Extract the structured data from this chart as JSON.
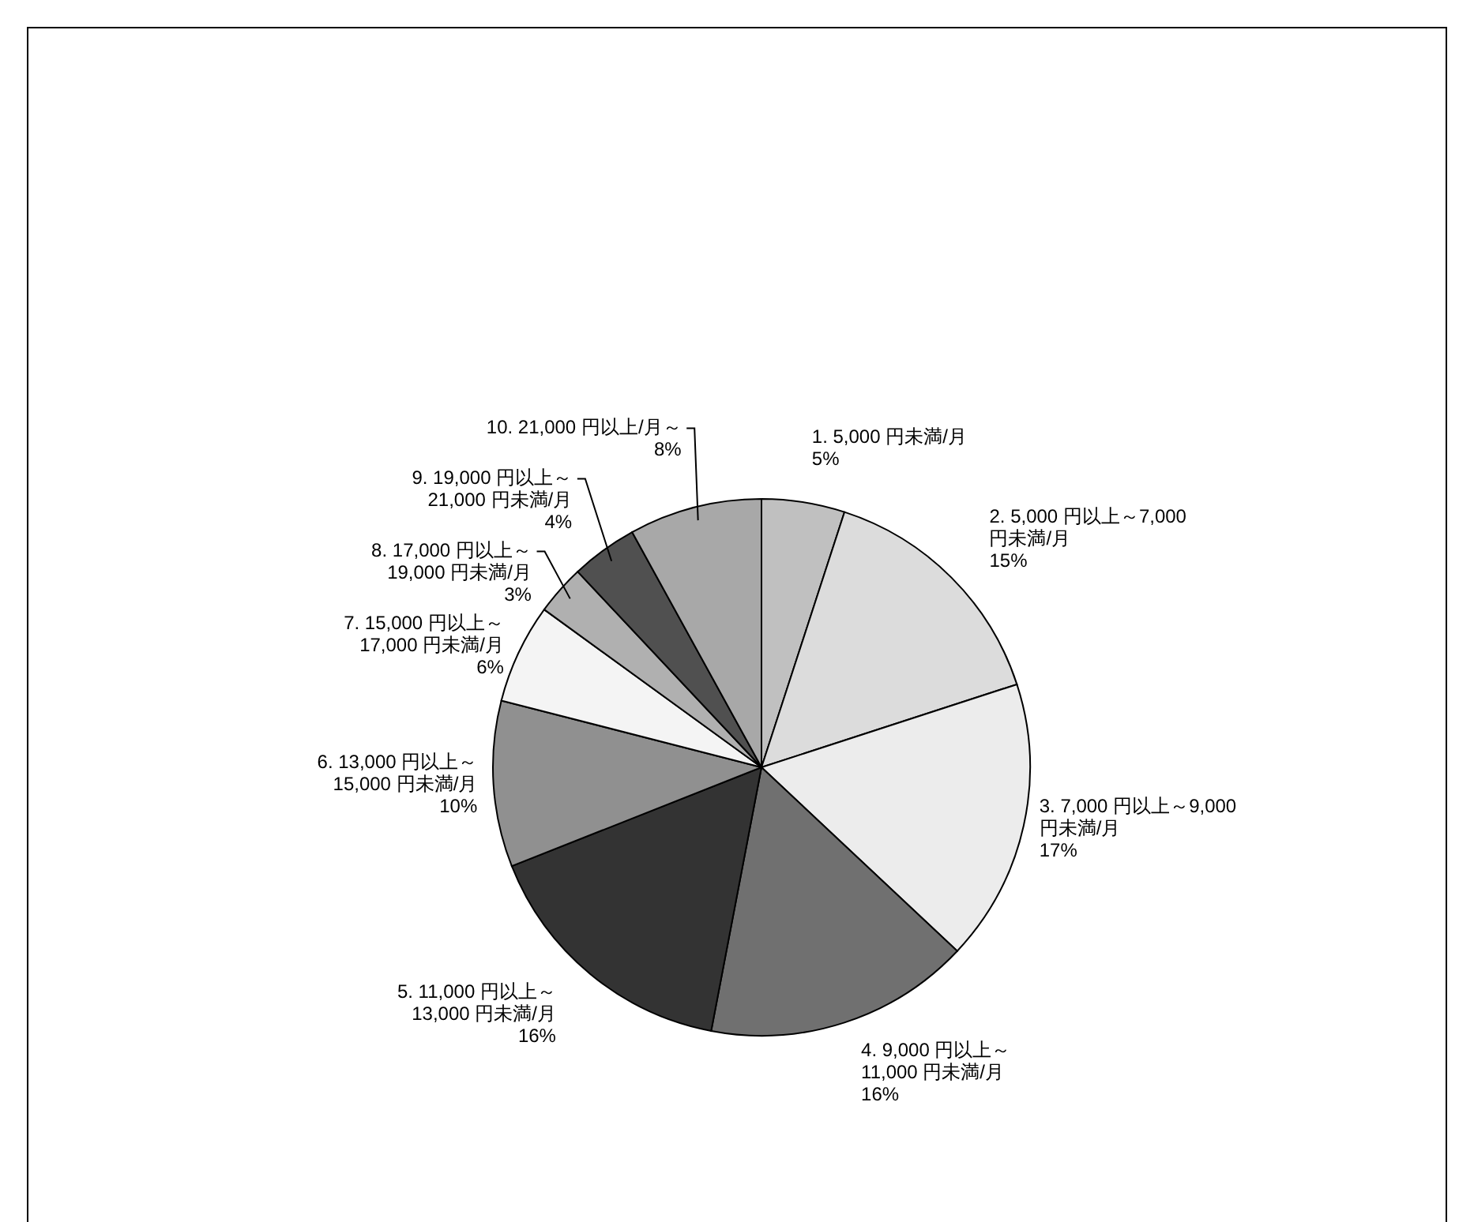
{
  "chart_data": {
    "type": "pie",
    "categories": [
      "1. 5,000 円未満/月",
      "2. 5,000 円以上～7,000 円未満/月",
      "3. 7,000 円以上～9,000 円未満/月",
      "4. 9,000 円以上～11,000 円未満/月",
      "5. 11,000 円以上～13,000 円未満/月",
      "6. 13,000 円以上～15,000 円未満/月",
      "7. 15,000 円以上～17,000 円未満/月",
      "8. 17,000 円以上～19,000 円未満/月",
      "9. 19,000 円以上～21,000 円未満/月",
      "10. 21,000 円以上/月～"
    ],
    "values": [
      5,
      15,
      17,
      16,
      16,
      10,
      6,
      3,
      4,
      8
    ],
    "value_labels": [
      "5%",
      "15%",
      "17%",
      "16%",
      "16%",
      "10%",
      "6%",
      "3%",
      "4%",
      "8%"
    ],
    "colors": [
      "#c0c0c0",
      "#dcdcdc",
      "#ececec",
      "#707070",
      "#333333",
      "#909090",
      "#f4f4f4",
      "#b0b0b0",
      "#505050",
      "#a8a8a8"
    ]
  }
}
